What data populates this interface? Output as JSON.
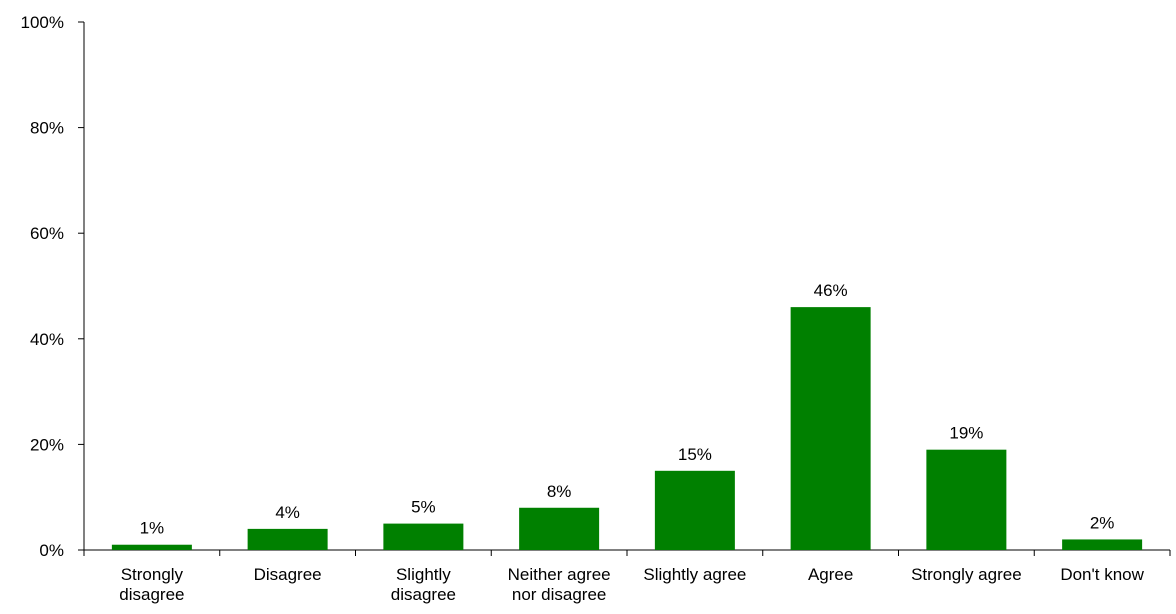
{
  "chart_data": {
    "type": "bar",
    "categories": [
      [
        "Strongly",
        "disagree"
      ],
      [
        "Disagree"
      ],
      [
        "Slightly",
        "disagree"
      ],
      [
        "Neither agree",
        "nor disagree"
      ],
      [
        "Slightly agree"
      ],
      [
        "Agree"
      ],
      [
        "Strongly agree"
      ],
      [
        "Don't know"
      ]
    ],
    "values": [
      1,
      4,
      5,
      8,
      15,
      46,
      19,
      2
    ],
    "data_labels": [
      "1%",
      "4%",
      "5%",
      "8%",
      "15%",
      "46%",
      "19%",
      "2%"
    ],
    "ylim": [
      0,
      100
    ],
    "yticks": [
      0,
      20,
      40,
      60,
      80,
      100
    ],
    "ytick_labels": [
      "0%",
      "20%",
      "40%",
      "60%",
      "80%",
      "100%"
    ],
    "bar_color": "#008000",
    "grid": false,
    "legend": "none"
  }
}
